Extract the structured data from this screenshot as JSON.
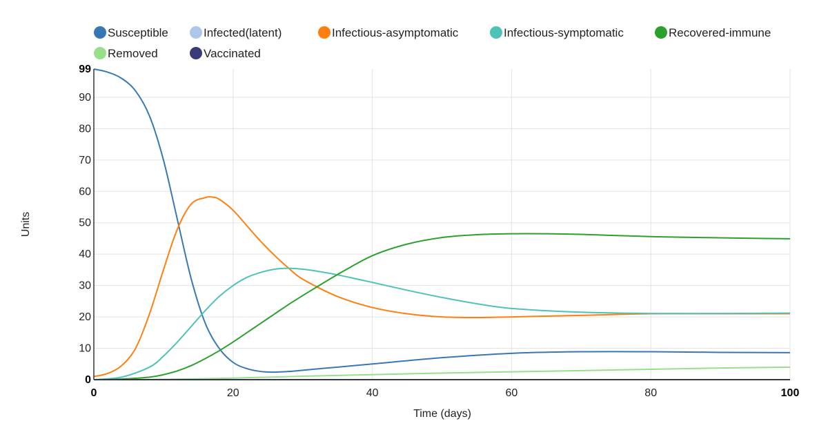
{
  "chart_data": {
    "type": "line",
    "title": "",
    "xlabel": "Time (days)",
    "ylabel": "Units",
    "xlim": [
      0,
      100
    ],
    "ylim": [
      0,
      99
    ],
    "x_ticks": [
      0,
      20,
      40,
      60,
      80,
      100
    ],
    "y_ticks": [
      0,
      10,
      20,
      30,
      40,
      50,
      60,
      70,
      80,
      90,
      99
    ],
    "bold_ticks": [
      0,
      99,
      100
    ],
    "grid": true,
    "legend_position": "top",
    "series": [
      {
        "name": "Susceptible",
        "color": "#3778b4",
        "x": [
          0,
          2,
          4,
          6,
          8,
          10,
          12,
          14,
          16,
          18,
          20,
          22,
          24,
          26,
          28,
          30,
          35,
          40,
          50,
          60,
          70,
          80,
          90,
          100
        ],
        "y": [
          99,
          98,
          96,
          92,
          84,
          70,
          51,
          32,
          18,
          10,
          5.5,
          3.5,
          2.6,
          2.4,
          2.6,
          3.0,
          4.0,
          5.0,
          7.0,
          8.4,
          8.9,
          8.9,
          8.7,
          8.6
        ]
      },
      {
        "name": "Infected(latent)",
        "color": "#aec7e8",
        "x": [
          0,
          10,
          20,
          40,
          60,
          80,
          100
        ],
        "y": [
          0,
          0,
          0,
          0,
          0,
          0,
          0
        ]
      },
      {
        "name": "Infectious-asymptomatic",
        "color": "#ff7f0e",
        "x": [
          0,
          2,
          4,
          6,
          8,
          10,
          12,
          14,
          16,
          17,
          18,
          20,
          22,
          24,
          26,
          28,
          30,
          35,
          40,
          45,
          50,
          55,
          60,
          70,
          80,
          90,
          100
        ],
        "y": [
          1,
          2,
          4.5,
          10,
          21,
          35,
          48,
          56,
          58,
          58.2,
          57.5,
          54,
          49,
          44,
          39.5,
          35.5,
          32,
          26.5,
          23,
          21,
          20,
          19.8,
          20,
          20.5,
          21,
          21,
          21
        ]
      },
      {
        "name": "Infectious-symptomatic",
        "color": "#4ec2b7",
        "x": [
          0,
          4,
          8,
          10,
          12,
          14,
          16,
          18,
          20,
          22,
          24,
          26,
          28,
          30,
          32,
          35,
          40,
          45,
          50,
          55,
          60,
          70,
          80,
          90,
          100
        ],
        "y": [
          0,
          0.8,
          4,
          7.5,
          12,
          17,
          22,
          26.5,
          30,
          32.6,
          34.2,
          35.2,
          35.5,
          35.2,
          34.6,
          33.4,
          31,
          28.5,
          26.2,
          24.2,
          22.7,
          21.5,
          21.1,
          21.1,
          21.2
        ]
      },
      {
        "name": "Recovered-immune",
        "color": "#2ca02c",
        "x": [
          0,
          4,
          8,
          10,
          12,
          14,
          16,
          18,
          20,
          22,
          24,
          26,
          28,
          30,
          32,
          35,
          40,
          45,
          50,
          55,
          60,
          65,
          70,
          80,
          90,
          100
        ],
        "y": [
          0,
          0.2,
          0.8,
          1.6,
          2.8,
          4.5,
          6.7,
          9.2,
          12,
          15,
          18,
          21,
          24,
          26.8,
          29.5,
          33.5,
          39.5,
          43.2,
          45.3,
          46.2,
          46.5,
          46.5,
          46.3,
          45.6,
          45.2,
          44.9
        ]
      },
      {
        "name": "Removed",
        "color": "#98df8a",
        "x": [
          0,
          10,
          20,
          30,
          40,
          50,
          60,
          70,
          80,
          90,
          100
        ],
        "y": [
          0,
          0.1,
          0.5,
          1.1,
          1.6,
          2.1,
          2.5,
          2.9,
          3.3,
          3.7,
          4.0
        ]
      },
      {
        "name": "Vaccinated",
        "color": "#393b79",
        "x": [
          0,
          10,
          20,
          40,
          60,
          80,
          100
        ],
        "y": [
          0,
          0,
          0,
          0,
          0,
          0,
          0
        ]
      }
    ]
  }
}
